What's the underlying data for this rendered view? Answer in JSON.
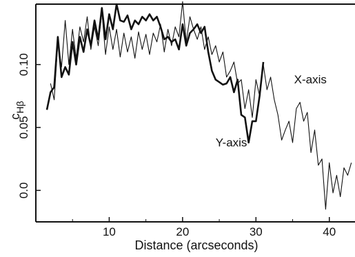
{
  "chart_data": {
    "type": "line",
    "xlabel": "Distance (arcseconds)",
    "ylabel_main": "c",
    "ylabel_sub": "Hβ",
    "xlim": [
      0,
      43.5
    ],
    "ylim": [
      -0.025,
      0.148
    ],
    "x_ticks": [
      10,
      20,
      30,
      40
    ],
    "x_tick_labels": [
      "10",
      "20",
      "30",
      "40"
    ],
    "y_ticks": [
      0.0,
      0.05,
      0.1
    ],
    "y_tick_labels": [
      "0.0",
      "0.05",
      "0.10"
    ],
    "grid": false,
    "series": [
      {
        "name": "X-axis",
        "label_at": [
          35.2,
          0.085
        ],
        "x": [
          2.0,
          2.5,
          3.0,
          3.5,
          4.0,
          4.5,
          5.0,
          5.5,
          6.0,
          6.5,
          7.0,
          7.5,
          8.0,
          8.5,
          9.0,
          9.5,
          10.0,
          10.5,
          11.0,
          11.5,
          12.0,
          12.5,
          13.0,
          13.5,
          14.0,
          14.5,
          15.0,
          15.5,
          16.0,
          16.5,
          17.0,
          17.5,
          18.0,
          18.5,
          19.0,
          19.5,
          20.0,
          20.5,
          21.0,
          21.5,
          22.0,
          22.5,
          23.0,
          23.5,
          24.0,
          24.5,
          25.0,
          25.5,
          26.0,
          26.5,
          27.0,
          27.5,
          28.0,
          28.5,
          29.0,
          29.5,
          30.0,
          30.5,
          31.0,
          31.5,
          32.0,
          32.5,
          33.0,
          33.5,
          34.0,
          34.5,
          35.0,
          35.5,
          36.0,
          36.5,
          37.0,
          37.5,
          38.0,
          38.5,
          39.0,
          39.5,
          40.0,
          40.5,
          41.0,
          41.5,
          42.0,
          42.5,
          43.0
        ],
        "values": [
          0.085,
          0.072,
          0.118,
          0.098,
          0.135,
          0.1,
          0.128,
          0.105,
          0.13,
          0.118,
          0.138,
          0.112,
          0.13,
          0.115,
          0.142,
          0.108,
          0.13,
          0.112,
          0.128,
          0.106,
          0.125,
          0.11,
          0.122,
          0.105,
          0.126,
          0.112,
          0.124,
          0.108,
          0.125,
          0.118,
          0.132,
          0.11,
          0.128,
          0.115,
          0.13,
          0.122,
          0.15,
          0.118,
          0.138,
          0.128,
          0.12,
          0.13,
          0.112,
          0.122,
          0.108,
          0.115,
          0.102,
          0.11,
          0.09,
          0.095,
          0.102,
          0.085,
          0.088,
          0.065,
          0.08,
          0.058,
          0.088,
          0.075,
          0.1,
          0.08,
          0.09,
          0.072,
          0.06,
          0.04,
          0.048,
          0.055,
          0.038,
          0.065,
          0.07,
          0.055,
          0.062,
          0.03,
          0.048,
          0.02,
          0.025,
          -0.015,
          0.022,
          -0.002,
          0.012,
          -0.005,
          0.018,
          0.012,
          0.022
        ]
      },
      {
        "name": "Y-axis",
        "label_at": [
          24.5,
          0.035
        ],
        "x": [
          1.5,
          2.0,
          2.5,
          3.0,
          3.5,
          4.0,
          4.5,
          5.0,
          5.5,
          6.0,
          6.5,
          7.0,
          7.5,
          8.0,
          8.5,
          9.0,
          9.5,
          10.0,
          10.5,
          11.0,
          11.5,
          12.0,
          12.5,
          13.0,
          13.5,
          14.0,
          14.5,
          15.0,
          15.5,
          16.0,
          16.5,
          17.0,
          17.5,
          18.0,
          18.5,
          19.0,
          19.5,
          20.0,
          20.5,
          21.0,
          21.5,
          22.0,
          22.5,
          23.0,
          23.5,
          24.0,
          24.5,
          25.0,
          25.5,
          26.0,
          26.5,
          27.0,
          27.5,
          28.0,
          28.5,
          29.0,
          29.5,
          30.0,
          30.5,
          31.0
        ],
        "values": [
          0.064,
          0.078,
          0.082,
          0.122,
          0.09,
          0.098,
          0.092,
          0.118,
          0.1,
          0.122,
          0.11,
          0.128,
          0.115,
          0.135,
          0.12,
          0.145,
          0.12,
          0.14,
          0.128,
          0.148,
          0.135,
          0.134,
          0.139,
          0.128,
          0.135,
          0.132,
          0.138,
          0.135,
          0.14,
          0.135,
          0.138,
          0.13,
          0.12,
          0.122,
          0.118,
          0.12,
          0.112,
          0.132,
          0.115,
          0.125,
          0.128,
          0.132,
          0.125,
          0.13,
          0.11,
          0.095,
          0.088,
          0.086,
          0.084,
          0.085,
          0.09,
          0.078,
          0.088,
          0.06,
          0.058,
          0.038,
          0.055,
          0.055,
          0.075,
          0.102
        ]
      }
    ]
  }
}
